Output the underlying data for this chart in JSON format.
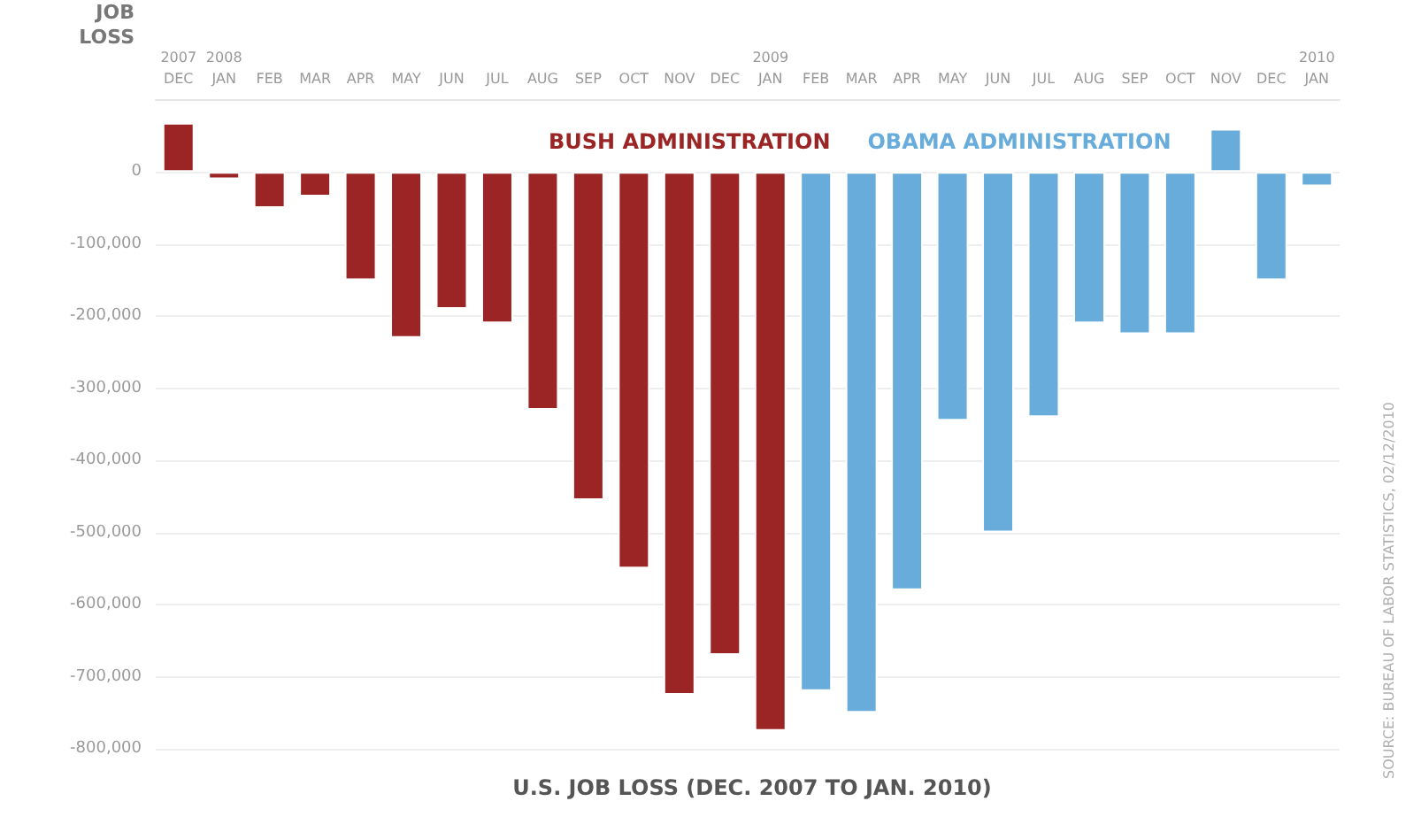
{
  "chart_data": {
    "type": "bar",
    "title": "U.S. JOB LOSS (DEC. 2007 TO JAN. 2010)",
    "ylabel": "JOB\nLOSS",
    "categories": [
      "2007\nDEC",
      "2008\nJAN",
      "FEB",
      "MAR",
      "APR",
      "MAY",
      "JUN",
      "JUL",
      "AUG",
      "SEP",
      "OCT",
      "NOV",
      "DEC",
      "2009\nJAN",
      "FEB",
      "MAR",
      "APR",
      "MAY",
      "JUN",
      "JUL",
      "AUG",
      "SEP",
      "OCT",
      "NOV",
      "DEC",
      "2010\nJAN"
    ],
    "series": [
      {
        "name": "BUSH ADMINISTRATION",
        "color": "#9b2525",
        "values": [
          68000,
          -10000,
          -50000,
          -34000,
          -150000,
          -230000,
          -190000,
          -210000,
          -330000,
          -455000,
          -550000,
          -725000,
          -670000,
          -775000,
          null,
          null,
          null,
          null,
          null,
          null,
          null,
          null,
          null,
          null,
          null,
          null
        ]
      },
      {
        "name": "OBAMA ADMINISTRATION",
        "color": "#67acdb",
        "values": [
          null,
          null,
          null,
          null,
          null,
          null,
          null,
          null,
          null,
          null,
          null,
          null,
          null,
          null,
          -720000,
          -750000,
          -580000,
          -345000,
          -500000,
          -340000,
          -210000,
          -225000,
          -225000,
          60000,
          -150000,
          -20000
        ]
      }
    ],
    "ylim": [
      -800000,
      100000
    ],
    "yticks": [
      0,
      {
        "value": -100000,
        "label": "-100,000"
      },
      {
        "value": -200000,
        "label": "-200,000"
      },
      {
        "value": -300000,
        "label": "-300,000"
      },
      {
        "value": -400000,
        "label": "-400,000"
      },
      {
        "value": -500000,
        "label": "-500,000"
      },
      {
        "value": -600000,
        "label": "-600,000"
      },
      {
        "value": -700000,
        "label": "-700,000"
      },
      {
        "value": -800000,
        "label": "-800,000"
      }
    ],
    "grid": "y",
    "legend": "top",
    "annotations": [
      "SOURCE: BUREAU OF LABOR STATISTICS, 02/12/2010"
    ]
  }
}
